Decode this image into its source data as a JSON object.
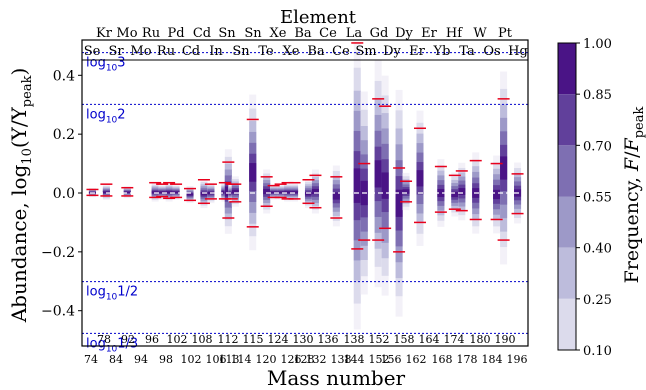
{
  "chart_data": {
    "type": "abundance-frequency-band",
    "title": "Element",
    "xlabel": "Mass number",
    "ylabel_main": "Abundance, log",
    "ylabel_sub": "10",
    "ylabel_ratio": "(Y/Y",
    "ylabel_ratio_sub": "peak",
    "ylabel_close": ")",
    "ylim": [
      -0.52,
      0.52
    ],
    "yticks": [
      {
        "v": 0.4,
        "label": "0.4"
      },
      {
        "v": 0.2,
        "label": "0.2"
      },
      {
        "v": 0.0,
        "label": "0.0"
      },
      {
        "v": -0.2,
        "label": "−0.2"
      },
      {
        "v": -0.4,
        "label": "−0.4"
      }
    ],
    "reference_lines": [
      {
        "y": 0.4771,
        "label_base": "log",
        "label_sub": "10",
        "label_arg": "3"
      },
      {
        "y": 0.30103,
        "label_base": "log",
        "label_sub": "10",
        "label_arg": "2"
      },
      {
        "y": -0.30103,
        "label_base": "log",
        "label_sub": "10",
        "label_arg": "1/2"
      },
      {
        "y": -0.4771,
        "label_base": "log",
        "label_sub": "10",
        "label_arg": "1/3"
      }
    ],
    "top_elements": [
      "Kr",
      "Mo",
      "Ru",
      "Pd",
      "Cd",
      "Sn",
      "Sn",
      "Xe",
      "Ba",
      "Ce",
      "La",
      "Gd",
      "Dy",
      "Er",
      "Hf",
      "W",
      "Pt"
    ],
    "inner_elements": [
      "Se",
      "Sr",
      "Mo",
      "Ru",
      "Cd",
      "In",
      "Sn",
      "Te",
      "Xe",
      "Ba",
      "Ce",
      "Sm",
      "Dy",
      "Er",
      "Yb",
      "Ta",
      "Os",
      "Hg"
    ],
    "top_masses": [
      "78",
      "92",
      "96",
      "102",
      "108",
      "112",
      "115",
      "124",
      "130",
      "136",
      "138",
      "152",
      "158",
      "164",
      "174",
      "180",
      "190"
    ],
    "bottom_masses": [
      "74",
      "84",
      "94",
      "98",
      "102",
      "106",
      "113",
      "114",
      "120",
      "126",
      "128",
      "132",
      "138",
      "144",
      "152",
      "156",
      "162",
      "168",
      "178",
      "184",
      "196"
    ],
    "colorbar": {
      "label_pre": "Frequency, ",
      "label_var": "F",
      "label_slash": "/",
      "label_var2": "F",
      "label_sub": "peak",
      "ticks": [
        "1.00",
        "0.85",
        "0.70",
        "0.55",
        "0.40",
        "0.25",
        "0.10"
      ],
      "levels": [
        0.1,
        0.25,
        0.4,
        0.55,
        0.7,
        0.85,
        1.0
      ],
      "colors": [
        "#f3f1f8",
        "#dcdbec",
        "#bdbcdc",
        "#9d99c8",
        "#7e6fb2",
        "#61409b",
        "#4a1486"
      ]
    },
    "red_color": "#e8001c",
    "white_dash_color": "#ffffff",
    "isotopes": [
      {
        "a": 74,
        "lo": -0.012,
        "hi": 0.015,
        "red_hi": 0.012,
        "red_lo": -0.008
      },
      {
        "a": 78,
        "lo": -0.02,
        "hi": 0.025,
        "red_hi": 0.03,
        "red_lo": -0.01
      },
      {
        "a": 84,
        "lo": -0.015,
        "hi": 0.02,
        "red_hi": 0.018,
        "red_lo": -0.01
      },
      {
        "a": 92,
        "lo": -0.025,
        "hi": 0.03,
        "red_hi": 0.035,
        "red_lo": -0.015
      },
      {
        "a": 94,
        "lo": -0.02,
        "hi": 0.025,
        "red_hi": 0.03,
        "red_lo": -0.012
      },
      {
        "a": 96,
        "lo": -0.025,
        "hi": 0.03,
        "red_hi": 0.035,
        "red_lo": -0.018
      },
      {
        "a": 98,
        "lo": -0.02,
        "hi": 0.025,
        "red_hi": 0.03,
        "red_lo": -0.015
      },
      {
        "a": 102,
        "lo": -0.03,
        "hi": 0.02,
        "red_hi": 0.015,
        "red_lo": -0.025
      },
      {
        "a": 106,
        "lo": -0.045,
        "hi": 0.04,
        "red_hi": 0.045,
        "red_lo": -0.035
      },
      {
        "a": 108,
        "lo": -0.03,
        "hi": 0.03,
        "red_hi": 0.03,
        "red_lo": -0.02
      },
      {
        "a": 112,
        "lo": -0.025,
        "hi": 0.03,
        "red_hi": 0.035,
        "red_lo": -0.02
      },
      {
        "a": 113,
        "lo": -0.12,
        "hi": 0.13,
        "red_hi": 0.105,
        "red_lo": -0.085
      },
      {
        "a": 114,
        "lo": -0.025,
        "hi": 0.025,
        "red_hi": 0.03,
        "red_lo": -0.02
      },
      {
        "a": 115,
        "lo": -0.04,
        "hi": 0.05,
        "red_hi": 0.03,
        "red_lo": -0.03
      },
      {
        "a": 120,
        "lo": -0.16,
        "hi": 0.3,
        "red_hi": 0.25,
        "red_lo": -0.115
      },
      {
        "a": 124,
        "lo": -0.06,
        "hi": 0.07,
        "red_hi": 0.055,
        "red_lo": -0.045
      },
      {
        "a": 126,
        "lo": -0.02,
        "hi": 0.025,
        "red_hi": 0.025,
        "red_lo": -0.015
      },
      {
        "a": 128,
        "lo": -0.02,
        "hi": 0.025,
        "red_hi": 0.03,
        "red_lo": -0.015
      },
      {
        "a": 130,
        "lo": -0.025,
        "hi": 0.03,
        "red_hi": 0.035,
        "red_lo": -0.02
      },
      {
        "a": 132,
        "lo": -0.025,
        "hi": 0.03,
        "red_hi": 0.035,
        "red_lo": -0.02
      },
      {
        "a": 136,
        "lo": -0.045,
        "hi": 0.04,
        "red_hi": 0.045,
        "red_lo": -0.035
      },
      {
        "a": 138,
        "lo": -0.06,
        "hi": 0.07,
        "red_hi": 0.06,
        "red_lo": -0.05
      },
      {
        "a": 144,
        "lo": -0.1,
        "hi": 0.08,
        "red_hi": 0.055,
        "red_lo": -0.085
      },
      {
        "a": 150,
        "lo": -0.4,
        "hi": 0.45,
        "red_hi": 0.51,
        "red_lo": -0.19
      },
      {
        "a": 152,
        "lo": -0.3,
        "hi": 0.3,
        "red_hi": 0.1,
        "red_lo": -0.16
      },
      {
        "a": 156,
        "lo": -0.27,
        "hi": 0.4,
        "red_hi": 0.32,
        "red_lo": -0.16
      },
      {
        "a": 158,
        "lo": -0.3,
        "hi": 0.35,
        "red_hi": 0.295,
        "red_lo": -0.12
      },
      {
        "a": 162,
        "lo": -0.37,
        "hi": 0.3,
        "red_hi": 0.085,
        "red_lo": -0.2
      },
      {
        "a": 164,
        "lo": -0.05,
        "hi": 0.06,
        "red_hi": 0.04,
        "red_lo": -0.03
      },
      {
        "a": 168,
        "lo": -0.15,
        "hi": 0.25,
        "red_hi": 0.22,
        "red_lo": -0.1
      },
      {
        "a": 174,
        "lo": -0.1,
        "hi": 0.1,
        "red_hi": 0.09,
        "red_lo": -0.065
      },
      {
        "a": 178,
        "lo": -0.07,
        "hi": 0.06,
        "red_hi": 0.06,
        "red_lo": -0.055
      },
      {
        "a": 180,
        "lo": -0.08,
        "hi": 0.09,
        "red_hi": 0.075,
        "red_lo": -0.06
      },
      {
        "a": 184,
        "lo": -0.12,
        "hi": 0.12,
        "red_hi": 0.11,
        "red_lo": -0.09
      },
      {
        "a": 190,
        "lo": -0.12,
        "hi": 0.11,
        "red_hi": 0.1,
        "red_lo": -0.09
      },
      {
        "a": 192,
        "lo": -0.2,
        "hi": 0.37,
        "red_hi": 0.32,
        "red_lo": -0.16
      },
      {
        "a": 196,
        "lo": -0.09,
        "hi": 0.09,
        "red_hi": 0.065,
        "red_lo": -0.07
      }
    ]
  }
}
